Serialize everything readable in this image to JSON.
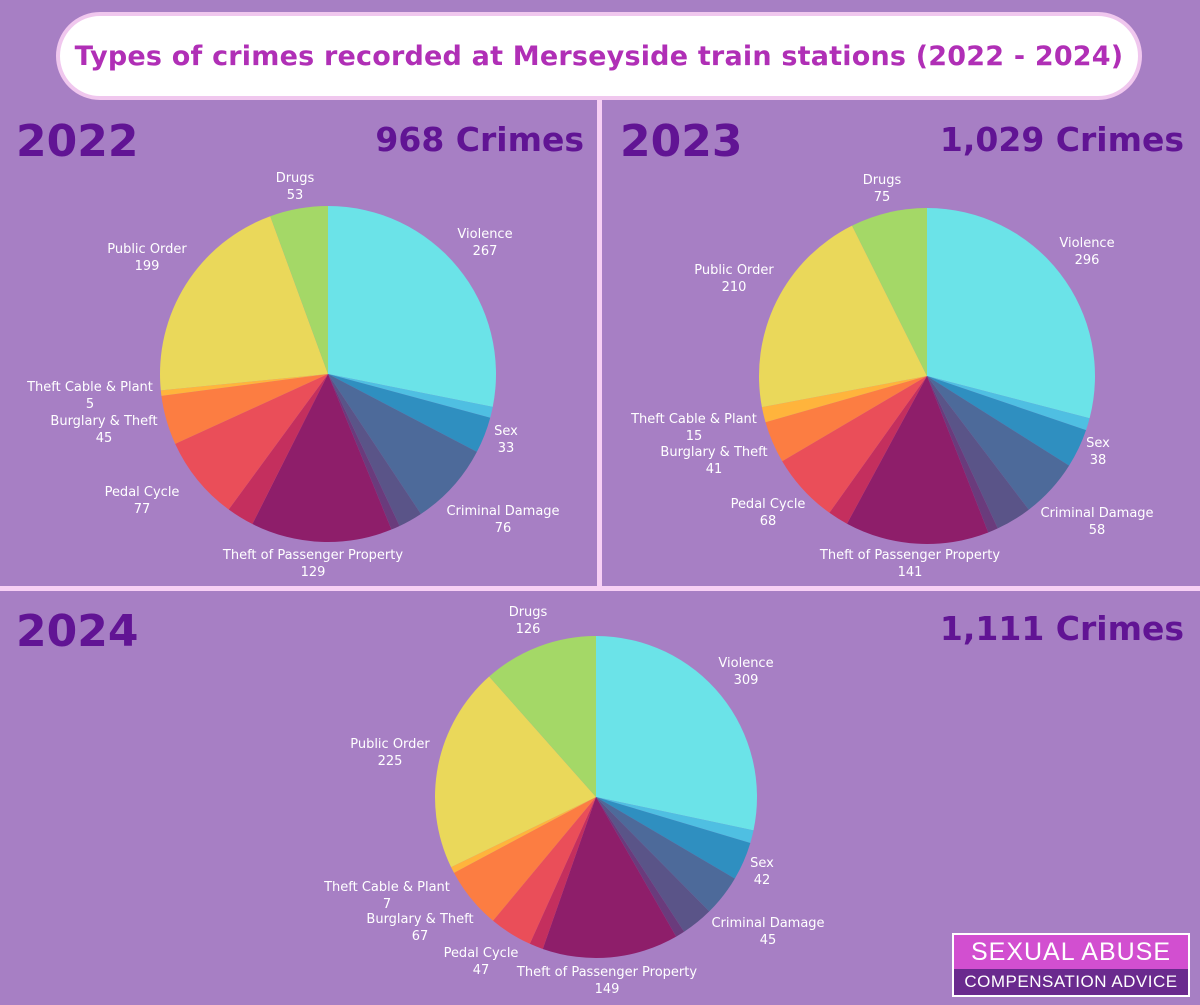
{
  "title": "Types of crimes recorded at Merseyside train stations (2022 - 2024)",
  "colors": {
    "background": "#a77fc4",
    "heading": "#611494",
    "title_text": "#b02fb6",
    "Violence": "#6be3e8",
    "Sex_light": "#4fbfe2",
    "Sex": "#2f8fc0",
    "Criminal Damage": "#4d6a9a",
    "Criminal Damage_dark": "#5a5488",
    "Theft of Passenger Property_dark": "#6a3b7c",
    "Theft of Passenger Property": "#8e1e6a",
    "Pedal Cycle_dark": "#c42f5e",
    "Pedal Cycle": "#ea4e59",
    "Burglary & Theft": "#fc7d42",
    "Theft Cable & Plant": "#ffb43c",
    "Public Order": "#ead85a",
    "Drugs": "#a4d867"
  },
  "chart_data": [
    {
      "type": "pie",
      "year": "2022",
      "total_label": "968 Crimes",
      "categories": [
        "Violence",
        "Sex",
        "Criminal Damage",
        "Theft of Passenger Property",
        "Pedal Cycle",
        "Burglary & Theft",
        "Theft Cable & Plant",
        "Public Order",
        "Drugs"
      ],
      "values": [
        267,
        33,
        76,
        129,
        77,
        45,
        5,
        199,
        53
      ],
      "value_labels": [
        "267",
        "33",
        "76",
        "129",
        "77",
        "45",
        "5",
        "199",
        "53"
      ],
      "unlabeled_slices": [
        {
          "after": "Violence",
          "value": 10
        },
        {
          "after": "Criminal Damage",
          "value": 22
        },
        {
          "after": "Criminal Damage",
          "value": 8
        },
        {
          "after": "Theft of Passenger Property",
          "value": 25
        }
      ]
    },
    {
      "type": "pie",
      "year": "2023",
      "total_label": "1,029 Crimes",
      "categories": [
        "Violence",
        "Sex",
        "Criminal Damage",
        "Theft of Passenger Property",
        "Pedal Cycle",
        "Burglary & Theft",
        "Theft Cable & Plant",
        "Public Order",
        "Drugs"
      ],
      "values": [
        296,
        38,
        58,
        141,
        68,
        41,
        15,
        210,
        75
      ],
      "value_labels": [
        "296",
        "38",
        "58",
        "141",
        "68",
        "41",
        "15",
        "210",
        "75"
      ],
      "unlabeled_slices": [
        {
          "after": "Violence",
          "value": 12
        },
        {
          "after": "Criminal Damage",
          "value": 35
        },
        {
          "after": "Criminal Damage",
          "value": 10
        },
        {
          "after": "Theft of Passenger Property",
          "value": 20
        }
      ]
    },
    {
      "type": "pie",
      "year": "2024",
      "total_label": "1,111 Crimes",
      "categories": [
        "Violence",
        "Sex",
        "Criminal Damage",
        "Theft of Passenger Property",
        "Pedal Cycle",
        "Burglary & Theft",
        "Theft Cable & Plant",
        "Public Order",
        "Drugs"
      ],
      "values": [
        309,
        42,
        45,
        149,
        47,
        67,
        7,
        225,
        126
      ],
      "value_labels": [
        "309",
        "42",
        "45",
        "149",
        "47",
        "67",
        "7",
        "225",
        "126"
      ],
      "unlabeled_slices": [
        {
          "after": "Violence",
          "value": 14
        },
        {
          "after": "Criminal Damage",
          "value": 35
        },
        {
          "after": "Criminal Damage",
          "value": 10
        },
        {
          "after": "Theft of Passenger Property",
          "value": 15
        }
      ]
    }
  ],
  "logo": {
    "line1": "SEXUAL ABUSE",
    "line2": "COMPENSATION ADVICE"
  }
}
